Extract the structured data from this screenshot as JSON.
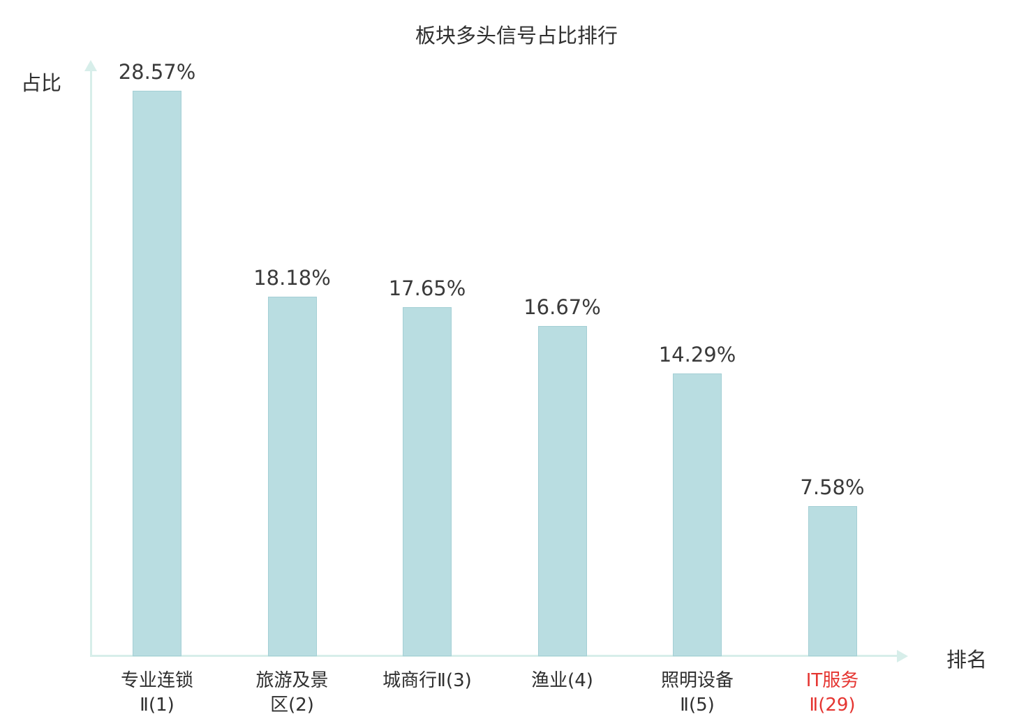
{
  "chart_data": {
    "type": "bar",
    "title": "板块多头信号占比排行",
    "xlabel": "排名",
    "ylabel": "占比",
    "categories": [
      "专业连锁Ⅱ(1)",
      "旅游及景区(2)",
      "城商行Ⅱ(3)",
      "渔业(4)",
      "照明设备Ⅱ(5)",
      "IT服务Ⅱ(29)"
    ],
    "category_lines": [
      [
        "专业连锁",
        "Ⅱ(1)"
      ],
      [
        "旅游及景",
        "区(2)"
      ],
      [
        "城商行Ⅱ(3)"
      ],
      [
        "渔业(4)"
      ],
      [
        "照明设备",
        "Ⅱ(5)"
      ],
      [
        "IT服务",
        "Ⅱ(29)"
      ]
    ],
    "values": [
      28.57,
      18.18,
      17.65,
      16.67,
      14.29,
      7.58
    ],
    "value_labels": [
      "28.57%",
      "18.18%",
      "17.65%",
      "16.67%",
      "14.29%",
      "7.58%"
    ],
    "highlight_index": 5,
    "ylim": [
      0,
      30
    ],
    "legend": null,
    "grid": false
  },
  "colors": {
    "bar_fill": "#b9dde1",
    "bar_border": "#a4cfd5",
    "axis": "#d7eeea",
    "text": "#2f2f2f",
    "highlight": "#e53531"
  }
}
